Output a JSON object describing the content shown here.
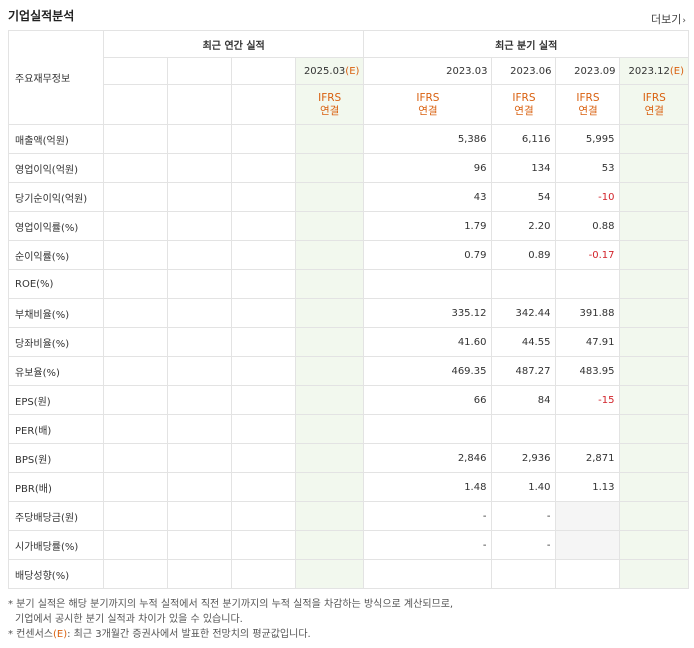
{
  "section": {
    "title": "기업실적분석",
    "more": "더보기"
  },
  "header": {
    "row_label": "주요재무정보",
    "annual_group": "최근 연간 실적",
    "quarter_group": "최근 분기 실적",
    "annual_periods": [
      "",
      "",
      "",
      "2025.03"
    ],
    "annual_est_marker": "(E)",
    "quarter_periods": [
      "2023.03",
      "2023.06",
      "2023.09",
      "2023.12"
    ],
    "quarter_est_marker": "(E)",
    "ifrs_top": "IFRS",
    "ifrs_bottom": "연결"
  },
  "rows": [
    {
      "label": "매출액(억원)",
      "q": [
        "5,386",
        "6,116",
        "5,995",
        ""
      ]
    },
    {
      "label": "영업이익(억원)",
      "q": [
        "96",
        "134",
        "53",
        ""
      ]
    },
    {
      "label": "당기순이익(억원)",
      "q": [
        "43",
        "54",
        "-10",
        ""
      ]
    },
    {
      "label": "영업이익률(%)",
      "q": [
        "1.79",
        "2.20",
        "0.88",
        ""
      ]
    },
    {
      "label": "순이익률(%)",
      "q": [
        "0.79",
        "0.89",
        "-0.17",
        ""
      ]
    },
    {
      "label": "ROE(%)",
      "q": [
        "",
        "",
        "",
        ""
      ]
    },
    {
      "label": "부채비율(%)",
      "q": [
        "335.12",
        "342.44",
        "391.88",
        ""
      ]
    },
    {
      "label": "당좌비율(%)",
      "q": [
        "41.60",
        "44.55",
        "47.91",
        ""
      ]
    },
    {
      "label": "유보율(%)",
      "q": [
        "469.35",
        "487.27",
        "483.95",
        ""
      ]
    },
    {
      "label": "EPS(원)",
      "q": [
        "66",
        "84",
        "-15",
        ""
      ]
    },
    {
      "label": "PER(배)",
      "q": [
        "",
        "",
        "",
        ""
      ]
    },
    {
      "label": "BPS(원)",
      "q": [
        "2,846",
        "2,936",
        "2,871",
        ""
      ]
    },
    {
      "label": "PBR(배)",
      "q": [
        "1.48",
        "1.40",
        "1.13",
        ""
      ]
    },
    {
      "label": "주당배당금(원)",
      "q": [
        "-",
        "-",
        "",
        ""
      ]
    },
    {
      "label": "시가배당률(%)",
      "q": [
        "-",
        "-",
        "",
        ""
      ]
    },
    {
      "label": "배당성향(%)",
      "q": [
        "",
        "",
        "",
        ""
      ]
    }
  ],
  "notes": {
    "line1": "* 분기 실적은 해당 분기까지의 누적 실적에서 직전 분기까지의 누적 실적을 차감하는 방식으로 계산되므로,",
    "line2": "기업에서 공시한 분기 실적과 차이가 있을 수 있습니다.",
    "line3_prefix": "* 컨센서스",
    "line3_marker": "(E)",
    "line3_suffix": ": 최근 3개월간 증권사에서 발표한 전망치의 평균값입니다."
  },
  "colors": {
    "estimate_bg": "#f2f8ee",
    "negative": "#d2232a",
    "accent": "#d9600f"
  }
}
